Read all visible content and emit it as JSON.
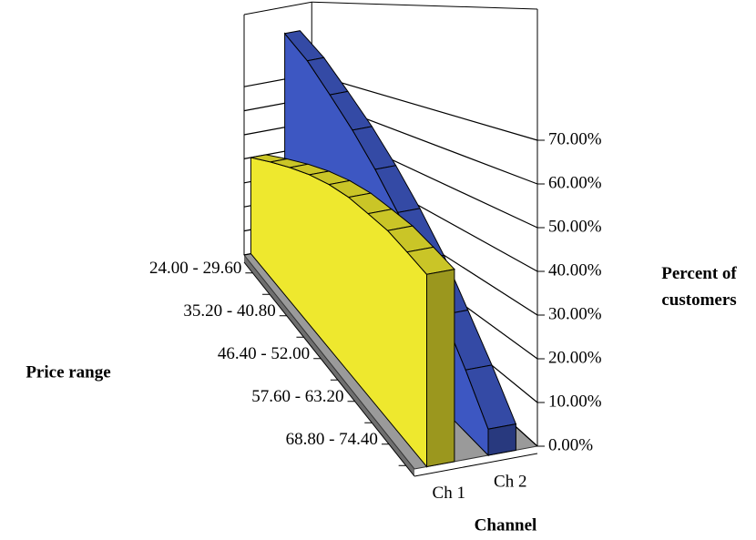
{
  "chart_data": {
    "type": "area3d",
    "x_label": "Price range",
    "y_label": "Percent of customers",
    "z_label": "Channel",
    "categories": [
      "24.00 - 29.60",
      null,
      "35.20 - 40.80",
      null,
      "46.40 - 52.00",
      null,
      "57.60 - 63.20",
      null,
      "68.80 - 74.40",
      null
    ],
    "series": [
      {
        "name": "Ch 1",
        "color": "#eee82e",
        "values": [
          40,
          44,
          47,
          49,
          50,
          50,
          49,
          48,
          46,
          44
        ]
      },
      {
        "name": "Ch 2",
        "color": "#3d57c2",
        "values": [
          89,
          80,
          70,
          61,
          52,
          43,
          34,
          24,
          15,
          6
        ]
      }
    ],
    "ylim": [
      0,
      100
    ],
    "yticks": [
      {
        "value": 0,
        "label": "0.00%"
      },
      {
        "value": 10,
        "label": "10.00%"
      },
      {
        "value": 20,
        "label": "20.00%"
      },
      {
        "value": 30,
        "label": "30.00%"
      },
      {
        "value": 40,
        "label": "40.00%"
      },
      {
        "value": 50,
        "label": "50.00%"
      },
      {
        "value": 60,
        "label": "60.00%"
      },
      {
        "value": 70,
        "label": "70.00%"
      }
    ],
    "grid": true
  }
}
